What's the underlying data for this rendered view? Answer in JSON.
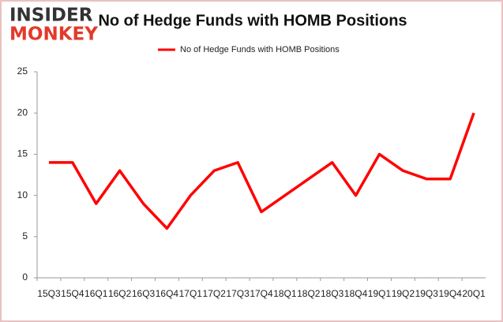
{
  "logo": [
    "INSIDER",
    "MONKEY"
  ],
  "chart_data": {
    "type": "line",
    "title": "No of Hedge Funds with HOMB Positions",
    "categories": [
      "15Q3",
      "15Q4",
      "16Q1",
      "16Q2",
      "16Q3",
      "16Q4",
      "17Q1",
      "17Q2",
      "17Q3",
      "17Q4",
      "18Q1",
      "18Q2",
      "18Q3",
      "18Q4",
      "19Q1",
      "19Q2",
      "19Q3",
      "19Q4",
      "20Q1"
    ],
    "series": [
      {
        "name": "No of Hedge Funds with HOMB Positions",
        "color": "#ff0000",
        "values": [
          14,
          14,
          9,
          13,
          9,
          6,
          10,
          13,
          14,
          8,
          10,
          12,
          14,
          10,
          15,
          13,
          12,
          12,
          20
        ]
      }
    ],
    "ylim": [
      0,
      25
    ],
    "yticks": [
      0,
      5,
      10,
      15,
      20,
      25
    ],
    "grid": false,
    "legend": "top"
  }
}
